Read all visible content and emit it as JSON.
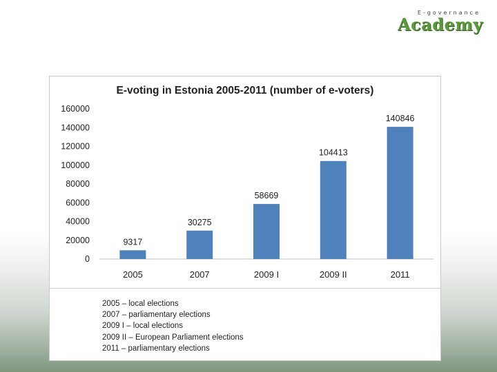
{
  "logo": {
    "small_text": "E-governance",
    "big_text": "Academy"
  },
  "chart_data": {
    "type": "bar",
    "title": "E-voting in Estonia 2005-2011 (number of e-voters)",
    "categories": [
      "2005",
      "2007",
      "2009 I",
      "2009 II",
      "2011"
    ],
    "values": [
      9317,
      30275,
      58669,
      104413,
      140846
    ],
    "ylim": [
      0,
      160000
    ],
    "yticks": [
      0,
      20000,
      40000,
      60000,
      80000,
      100000,
      120000,
      140000,
      160000
    ],
    "xlabel": "",
    "ylabel": "",
    "grid": false,
    "bar_color": "#4f81bd",
    "data_labels": true
  },
  "notes": [
    "2005 – local elections",
    "2007 – parliamentary elections",
    "2009 I – local elections",
    "2009 II – European Parliament elections",
    "2011 – parliamentary elections"
  ]
}
